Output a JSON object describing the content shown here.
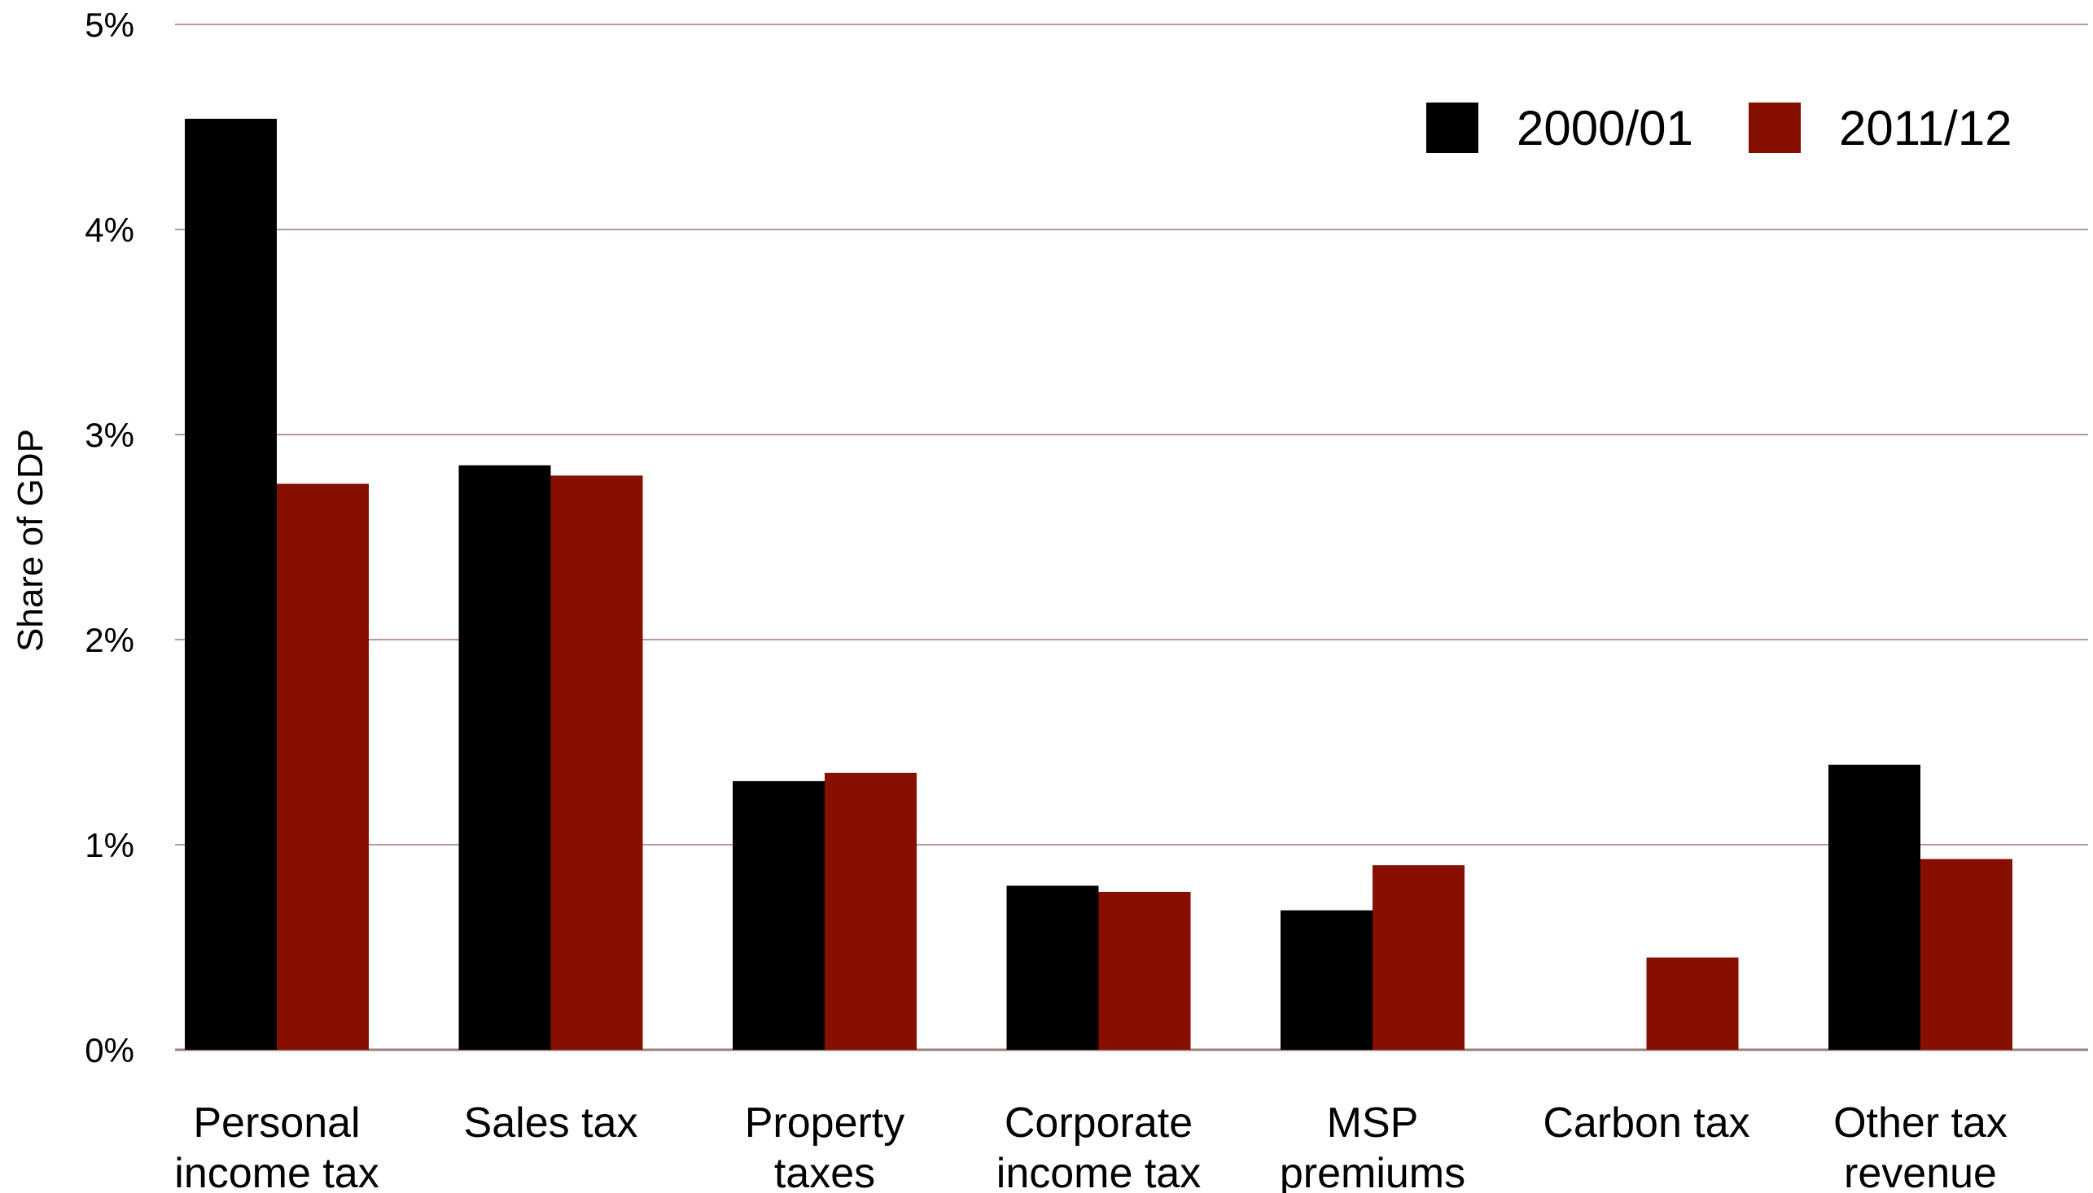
{
  "chart_data": {
    "type": "bar",
    "categories": [
      [
        "Personal",
        "income tax"
      ],
      [
        "Sales tax"
      ],
      [
        "Property",
        "taxes"
      ],
      [
        "Corporate",
        "income tax"
      ],
      [
        "MSP",
        "premiums"
      ],
      [
        "Carbon tax"
      ],
      [
        "Other tax",
        "revenue"
      ]
    ],
    "series": [
      {
        "name": "2000/01",
        "color": "#000000",
        "values": [
          4.54,
          2.85,
          1.31,
          0.8,
          0.68,
          null,
          1.39
        ]
      },
      {
        "name": "2011/12",
        "color": "#860f00",
        "values": [
          2.76,
          2.8,
          1.35,
          0.77,
          0.9,
          0.45,
          0.93
        ]
      }
    ],
    "yticks": [
      "0%",
      "1%",
      "2%",
      "3%",
      "4%",
      "5%"
    ],
    "ylim": [
      0,
      5
    ],
    "ylabel": "Share of GDP",
    "xlabel": "",
    "title": "",
    "grid": true,
    "legend_position": "top-right"
  }
}
